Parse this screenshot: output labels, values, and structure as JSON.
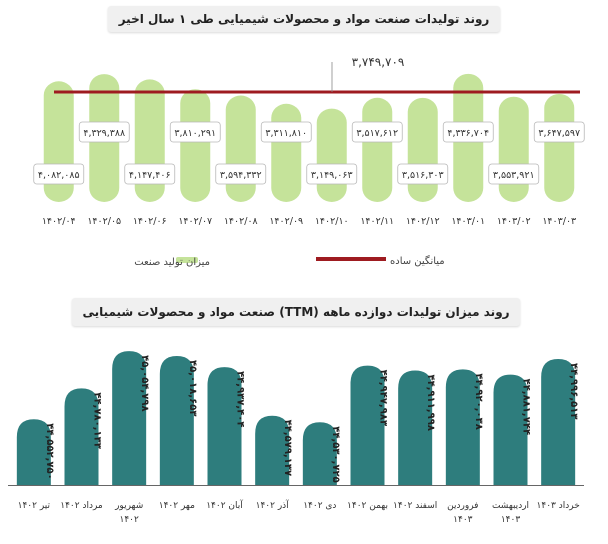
{
  "charts": {
    "top_title": "روند تولیدات صنعت مواد و محصولات شیمیایی طی ۱ سال اخیر",
    "bottom_title": "روند میزان تولیدات دوازده ماهه (TTM) صنعت مواد و محصولات شیمیایی"
  },
  "colors": {
    "top_bar": "#c5e39a",
    "average_line": "#9e1b20",
    "bottom_bar": "#2e7d7d",
    "title_bg": "#f0f0f0"
  },
  "chart_data": [
    {
      "type": "bar",
      "title": "روند تولیدات صنعت مواد و محصولات شیمیایی طی ۱ سال اخیر",
      "categories": [
        "۱۴۰۲/۰۴",
        "۱۴۰۲/۰۵",
        "۱۴۰۲/۰۶",
        "۱۴۰۲/۰۷",
        "۱۴۰۲/۰۸",
        "۱۴۰۲/۰۹",
        "۱۴۰۲/۱۰",
        "۱۴۰۲/۱۱",
        "۱۴۰۲/۱۲",
        "۱۴۰۳/۰۱",
        "۱۴۰۳/۰۲",
        "۱۴۰۳/۰۳"
      ],
      "series": [
        {
          "name": "میزان تولید صنعت",
          "values": [
            4082085,
            4329388,
            4147406,
            3810291,
            3594332,
            3311810,
            3149063,
            3517612,
            3516303,
            4336704,
            3553921,
            3647597
          ],
          "labels": [
            "۴,۰۸۲,۰۸۵",
            "۴,۳۲۹,۳۸۸",
            "۴,۱۴۷,۴۰۶",
            "۳,۸۱۰,۲۹۱",
            "۳,۵۹۴,۳۳۲",
            "۳,۳۱۱,۸۱۰",
            "۳,۱۴۹,۰۶۳",
            "۳,۵۱۷,۶۱۲",
            "۳,۵۱۶,۳۰۳",
            "۴,۳۳۶,۷۰۴",
            "۳,۵۵۳,۹۲۱",
            "۳,۶۴۷,۵۹۷"
          ]
        }
      ],
      "average": {
        "name": "میانگین ساده",
        "value": 3749709,
        "label": "۳,۷۴۹,۷۰۹"
      },
      "legend": {
        "placement": "bottom"
      },
      "grid": false
    },
    {
      "type": "bar",
      "title": "روند میزان تولیدات دوازده ماهه (TTM) صنعت مواد و محصولات شیمیایی",
      "categories": [
        "تیر ۱۴۰۲",
        "مرداد ۱۴۰۲",
        "شهریور ۱۴۰۲",
        "مهر ۱۴۰۲",
        "آبان ۱۴۰۲",
        "آذر ۱۴۰۲",
        "دی ۱۴۰۲",
        "بهمن ۱۴۰۲",
        "اسفند ۱۴۰۲",
        "فروردین ۱۴۰۳",
        "اردیبهشت ۱۴۰۳",
        "خرداد ۱۴۰۳"
      ],
      "series": [
        {
          "values": [
            44552750,
            44780133,
            45054798,
            45018653,
            44937404,
            44579137,
            44530725,
            44947983,
            44911998,
            44920038,
            44881744,
            44996513
          ],
          "labels": [
            "۴۴,۵۵۲,۷۵۰",
            "۴۴,۷۸۰,۱۳۳",
            "۴۵,۰۵۴,۷۹۸",
            "۴۵,۰۱۸,۶۵۳",
            "۴۴,۹۳۷,۴۰۴",
            "۴۴,۵۷۹,۱۳۷",
            "۴۴,۵۳۰,۷۲۵",
            "۴۴,۹۴۷,۹۸۳",
            "۴۴,۹۱۱,۹۹۸",
            "۴۴,۹۲۰,۰۳۸",
            "۴۴,۸۸۱,۷۴۴",
            "۴۴,۹۹۶,۵۱۳"
          ]
        }
      ],
      "grid": false
    }
  ]
}
